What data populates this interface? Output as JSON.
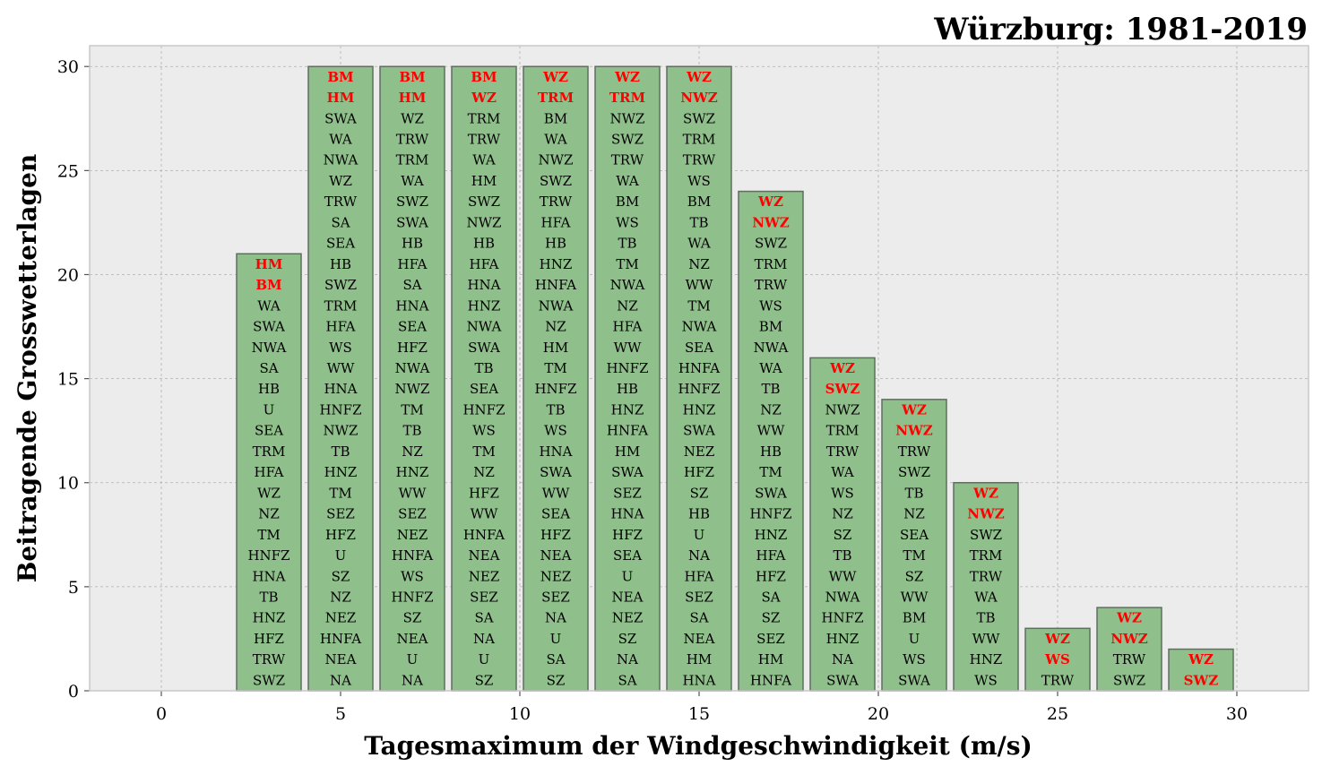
{
  "chart_data": {
    "type": "bar",
    "title": "Würzburg: 1981-2019",
    "xlabel": "Tagesmaximum der Windgeschwindigkeit (m/s)",
    "ylabel": "Beitragende Grosswetterlagen",
    "xlim": [
      -2,
      32
    ],
    "ylim": [
      0,
      31
    ],
    "xticks": [
      0,
      5,
      10,
      15,
      20,
      25,
      30
    ],
    "yticks": [
      0,
      5,
      10,
      15,
      20,
      25,
      30
    ],
    "grid": true,
    "bin_width": 2,
    "colors": {
      "bar": "#8fbf8a",
      "bar_edge": "#5f6f5f",
      "highlight": "#ff0000",
      "text": "#000000",
      "background": "#ececec",
      "grid": "#b0b0b0"
    },
    "bars": [
      {
        "x": 3,
        "value": 21,
        "highlight_count": 2,
        "labels": [
          "HM",
          "BM",
          "WA",
          "SWA",
          "NWA",
          "SA",
          "HB",
          "U",
          "SEA",
          "TRM",
          "HFA",
          "WZ",
          "NZ",
          "TM",
          "HNFZ",
          "HNA",
          "TB",
          "HNZ",
          "HFZ",
          "TRW",
          "SWZ"
        ]
      },
      {
        "x": 5,
        "value": 30,
        "highlight_count": 2,
        "labels": [
          "BM",
          "HM",
          "SWA",
          "WA",
          "NWA",
          "WZ",
          "TRW",
          "SA",
          "SEA",
          "HB",
          "SWZ",
          "TRM",
          "HFA",
          "WS",
          "WW",
          "HNA",
          "HNFZ",
          "NWZ",
          "TB",
          "HNZ",
          "TM",
          "SEZ",
          "HFZ",
          "U",
          "SZ",
          "NZ",
          "NEZ",
          "HNFA",
          "NEA",
          "NA"
        ]
      },
      {
        "x": 7,
        "value": 30,
        "highlight_count": 2,
        "labels": [
          "BM",
          "HM",
          "WZ",
          "TRW",
          "TRM",
          "WA",
          "SWZ",
          "SWA",
          "HB",
          "HFA",
          "SA",
          "HNA",
          "SEA",
          "HFZ",
          "NWA",
          "NWZ",
          "TM",
          "TB",
          "NZ",
          "HNZ",
          "WW",
          "SEZ",
          "NEZ",
          "HNFA",
          "WS",
          "HNFZ",
          "SZ",
          "NEA",
          "U",
          "NA"
        ]
      },
      {
        "x": 9,
        "value": 30,
        "highlight_count": 2,
        "labels": [
          "BM",
          "WZ",
          "TRM",
          "TRW",
          "WA",
          "HM",
          "SWZ",
          "NWZ",
          "HB",
          "HFA",
          "HNA",
          "HNZ",
          "NWA",
          "SWA",
          "TB",
          "SEA",
          "HNFZ",
          "WS",
          "TM",
          "NZ",
          "HFZ",
          "WW",
          "HNFA",
          "NEA",
          "NEZ",
          "SEZ",
          "SA",
          "NA",
          "U",
          "SZ"
        ]
      },
      {
        "x": 11,
        "value": 30,
        "highlight_count": 2,
        "labels": [
          "WZ",
          "TRM",
          "BM",
          "WA",
          "NWZ",
          "SWZ",
          "TRW",
          "HFA",
          "HB",
          "HNZ",
          "HNFA",
          "NWA",
          "NZ",
          "HM",
          "TM",
          "HNFZ",
          "TB",
          "WS",
          "HNA",
          "SWA",
          "WW",
          "SEA",
          "HFZ",
          "NEA",
          "NEZ",
          "SEZ",
          "NA",
          "U",
          "SA",
          "SZ"
        ]
      },
      {
        "x": 13,
        "value": 30,
        "highlight_count": 2,
        "labels": [
          "WZ",
          "TRM",
          "NWZ",
          "SWZ",
          "TRW",
          "WA",
          "BM",
          "WS",
          "TB",
          "TM",
          "NWA",
          "NZ",
          "HFA",
          "WW",
          "HNFZ",
          "HB",
          "HNZ",
          "HNFA",
          "HM",
          "SWA",
          "SEZ",
          "HNA",
          "HFZ",
          "SEA",
          "U",
          "NEA",
          "NEZ",
          "SZ",
          "NA",
          "SA"
        ]
      },
      {
        "x": 15,
        "value": 30,
        "highlight_count": 2,
        "labels": [
          "WZ",
          "NWZ",
          "SWZ",
          "TRM",
          "TRW",
          "WS",
          "BM",
          "TB",
          "WA",
          "NZ",
          "WW",
          "TM",
          "NWA",
          "SEA",
          "HNFA",
          "HNFZ",
          "HNZ",
          "SWA",
          "NEZ",
          "HFZ",
          "SZ",
          "HB",
          "U",
          "NA",
          "HFA",
          "SEZ",
          "SA",
          "NEA",
          "HM",
          "HNA"
        ]
      },
      {
        "x": 17,
        "value": 24,
        "highlight_count": 2,
        "labels": [
          "WZ",
          "NWZ",
          "SWZ",
          "TRM",
          "TRW",
          "WS",
          "BM",
          "NWA",
          "WA",
          "TB",
          "NZ",
          "WW",
          "HB",
          "TM",
          "SWA",
          "HNFZ",
          "HNZ",
          "HFA",
          "HFZ",
          "SA",
          "SZ",
          "SEZ",
          "HM",
          "HNFA"
        ]
      },
      {
        "x": 19,
        "value": 16,
        "highlight_count": 2,
        "labels": [
          "WZ",
          "SWZ",
          "NWZ",
          "TRM",
          "TRW",
          "WA",
          "WS",
          "NZ",
          "SZ",
          "TB",
          "WW",
          "NWA",
          "HNFZ",
          "HNZ",
          "NA",
          "SWA"
        ]
      },
      {
        "x": 21,
        "value": 14,
        "highlight_count": 2,
        "labels": [
          "WZ",
          "NWZ",
          "TRW",
          "SWZ",
          "TB",
          "NZ",
          "SEA",
          "TM",
          "SZ",
          "WW",
          "BM",
          "U",
          "WS",
          "SWA"
        ]
      },
      {
        "x": 23,
        "value": 10,
        "highlight_count": 2,
        "labels": [
          "WZ",
          "NWZ",
          "SWZ",
          "TRM",
          "TRW",
          "WA",
          "TB",
          "WW",
          "HNZ",
          "WS"
        ]
      },
      {
        "x": 25,
        "value": 3,
        "highlight_count": 2,
        "labels": [
          "WZ",
          "WS",
          "TRW"
        ]
      },
      {
        "x": 27,
        "value": 4,
        "highlight_count": 2,
        "labels": [
          "WZ",
          "NWZ",
          "TRW",
          "SWZ"
        ]
      },
      {
        "x": 29,
        "value": 2,
        "highlight_count": 2,
        "labels": [
          "WZ",
          "SWZ"
        ]
      }
    ]
  }
}
